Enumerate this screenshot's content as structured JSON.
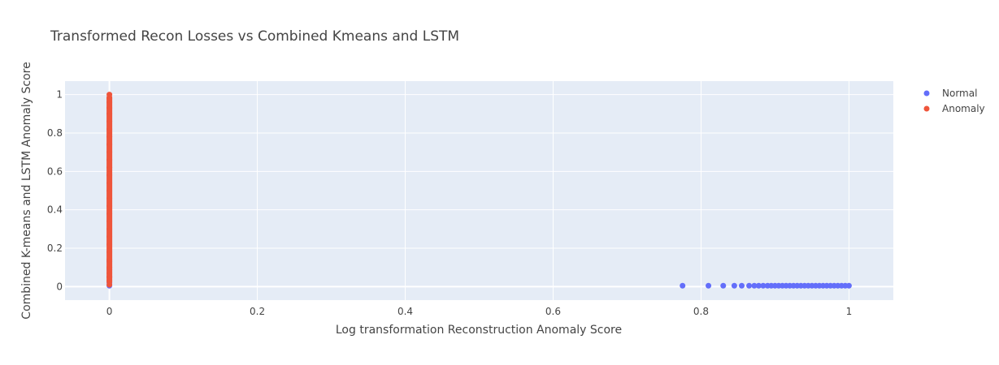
{
  "chart_data": {
    "type": "scatter",
    "title": "Transformed Recon Losses vs Combined Kmeans and LSTM",
    "xlabel": "Log transformation Reconstruction Anomaly Score",
    "ylabel": "Combined K-means and LSTM Anomaly Score",
    "xlim": [
      -0.06,
      1.06
    ],
    "ylim": [
      -0.07,
      1.07
    ],
    "x_ticks": [
      0,
      0.2,
      0.4,
      0.6,
      0.8,
      1
    ],
    "x_tick_labels": [
      "0",
      "0.2",
      "0.4",
      "0.6",
      "0.8",
      "1"
    ],
    "y_ticks": [
      0,
      0.2,
      0.4,
      0.6,
      0.8,
      1
    ],
    "y_tick_labels": [
      "0",
      "0.2",
      "0.4",
      "0.6",
      "0.8",
      "1"
    ],
    "grid": true,
    "legend_position": "top-right",
    "series": [
      {
        "name": "Normal",
        "color": "#636efa",
        "points": [
          [
            0.0,
            0.005
          ],
          [
            0.0,
            0.02
          ],
          [
            0.0,
            0.05
          ],
          [
            0.0,
            0.09
          ],
          [
            0.0,
            0.13
          ],
          [
            0.775,
            0.005
          ],
          [
            0.81,
            0.005
          ],
          [
            0.83,
            0.005
          ],
          [
            0.845,
            0.005
          ],
          [
            0.855,
            0.005
          ],
          [
            0.865,
            0.005
          ],
          [
            0.872,
            0.005
          ],
          [
            0.878,
            0.005
          ],
          [
            0.884,
            0.005
          ],
          [
            0.89,
            0.005
          ],
          [
            0.895,
            0.005
          ],
          [
            0.9,
            0.005
          ],
          [
            0.905,
            0.005
          ],
          [
            0.91,
            0.005
          ],
          [
            0.915,
            0.005
          ],
          [
            0.92,
            0.005
          ],
          [
            0.925,
            0.005
          ],
          [
            0.93,
            0.005
          ],
          [
            0.935,
            0.005
          ],
          [
            0.94,
            0.005
          ],
          [
            0.945,
            0.005
          ],
          [
            0.95,
            0.005
          ],
          [
            0.955,
            0.005
          ],
          [
            0.96,
            0.005
          ],
          [
            0.965,
            0.005
          ],
          [
            0.97,
            0.005
          ],
          [
            0.975,
            0.005
          ],
          [
            0.98,
            0.005
          ],
          [
            0.985,
            0.005
          ],
          [
            0.99,
            0.005
          ],
          [
            0.995,
            0.005
          ],
          [
            1.0,
            0.005
          ]
        ]
      },
      {
        "name": "Anomaly",
        "color": "#ef553b",
        "points": [
          [
            0.0,
            0.01
          ],
          [
            0.0,
            0.03
          ],
          [
            0.0,
            0.05
          ],
          [
            0.0,
            0.07
          ],
          [
            0.0,
            0.1
          ],
          [
            0.0,
            0.14
          ],
          [
            0.0,
            0.18
          ],
          [
            0.0,
            0.22
          ],
          [
            0.0,
            0.26
          ],
          [
            0.0,
            0.3
          ],
          [
            0.0,
            0.34
          ],
          [
            0.0,
            0.38
          ],
          [
            0.0,
            0.42
          ],
          [
            0.0,
            0.46
          ],
          [
            0.0,
            0.5
          ],
          [
            0.0,
            0.54
          ],
          [
            0.0,
            0.58
          ],
          [
            0.0,
            0.62
          ],
          [
            0.0,
            0.66
          ],
          [
            0.0,
            0.7
          ],
          [
            0.0,
            0.74
          ],
          [
            0.0,
            0.78
          ],
          [
            0.0,
            0.82
          ],
          [
            0.0,
            0.86
          ],
          [
            0.0,
            0.9
          ],
          [
            0.0,
            0.93
          ],
          [
            0.0,
            0.96
          ],
          [
            0.0,
            0.98
          ],
          [
            0.0,
            1.0
          ]
        ]
      }
    ]
  },
  "colors": {
    "plot_background": "#e5ecf6",
    "grid": "#ffffff",
    "text": "#444444"
  }
}
